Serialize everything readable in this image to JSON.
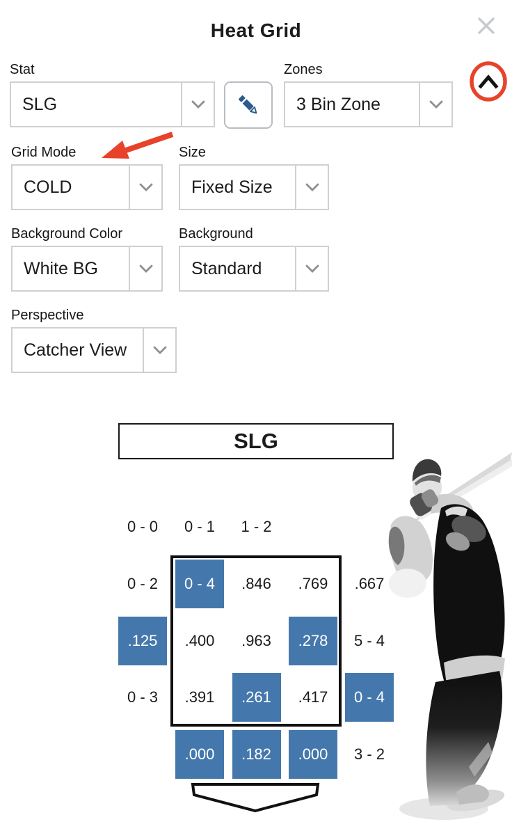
{
  "header": {
    "title": "Heat Grid",
    "close_icon": "x"
  },
  "controls": {
    "stat": {
      "label": "Stat",
      "value": "SLG"
    },
    "zones": {
      "label": "Zones",
      "value": "3 Bin Zone"
    },
    "grid_mode": {
      "label": "Grid Mode",
      "value": "COLD"
    },
    "size": {
      "label": "Size",
      "value": "Fixed Size"
    },
    "background_color": {
      "label": "Background Color",
      "value": "White BG"
    },
    "background": {
      "label": "Background",
      "value": "Standard"
    },
    "perspective": {
      "label": "Perspective",
      "value": "Catcher View"
    }
  },
  "icons": {
    "edit": "pencil-icon",
    "dropdown": "chevron-down-icon",
    "collapse": "chevron-up-icon",
    "close": "close-icon"
  },
  "annotations": {
    "circle_highlight_target": "collapse-button",
    "arrow_target_label": "Grid Mode",
    "color": "#e8432a"
  },
  "heat_grid": {
    "type": "heatmap",
    "title": "SLG",
    "mode": "COLD",
    "cold_color": "#4478ad",
    "columns": 5,
    "rows": 5,
    "cells": [
      {
        "row": 0,
        "col": 0,
        "text": "0 - 0",
        "cold": false
      },
      {
        "row": 0,
        "col": 1,
        "text": "0 - 1",
        "cold": false
      },
      {
        "row": 0,
        "col": 2,
        "text": "1 - 2",
        "cold": false
      },
      {
        "row": 1,
        "col": 0,
        "text": "0 - 2",
        "cold": false
      },
      {
        "row": 1,
        "col": 1,
        "text": "0 - 4",
        "cold": true
      },
      {
        "row": 1,
        "col": 2,
        "text": ".846",
        "cold": false
      },
      {
        "row": 1,
        "col": 3,
        "text": ".769",
        "cold": false
      },
      {
        "row": 1,
        "col": 4,
        "text": ".667",
        "cold": false
      },
      {
        "row": 2,
        "col": 0,
        "text": ".125",
        "cold": true
      },
      {
        "row": 2,
        "col": 1,
        "text": ".400",
        "cold": false
      },
      {
        "row": 2,
        "col": 2,
        "text": ".963",
        "cold": false
      },
      {
        "row": 2,
        "col": 3,
        "text": ".278",
        "cold": true
      },
      {
        "row": 2,
        "col": 4,
        "text": "5 - 4",
        "cold": false
      },
      {
        "row": 3,
        "col": 0,
        "text": "0 - 3",
        "cold": false
      },
      {
        "row": 3,
        "col": 1,
        "text": ".391",
        "cold": false
      },
      {
        "row": 3,
        "col": 2,
        "text": ".261",
        "cold": true
      },
      {
        "row": 3,
        "col": 3,
        "text": ".417",
        "cold": false
      },
      {
        "row": 3,
        "col": 4,
        "text": "0 - 4",
        "cold": true
      },
      {
        "row": 4,
        "col": 1,
        "text": ".000",
        "cold": true
      },
      {
        "row": 4,
        "col": 2,
        "text": ".182",
        "cold": true
      },
      {
        "row": 4,
        "col": 3,
        "text": ".000",
        "cold": true
      },
      {
        "row": 4,
        "col": 4,
        "text": "3 - 2",
        "cold": false
      }
    ],
    "strike_zone": {
      "rows": "1-3",
      "cols": "1-3"
    },
    "home_plate": "pentagon-below-grid"
  },
  "colors": {
    "cold_cell_blue": "#4478ad",
    "annotation_red": "#e8432a",
    "pencil_blue": "#2d5b8e",
    "border_gray": "#d0d0d0",
    "outline_black": "#111111"
  }
}
